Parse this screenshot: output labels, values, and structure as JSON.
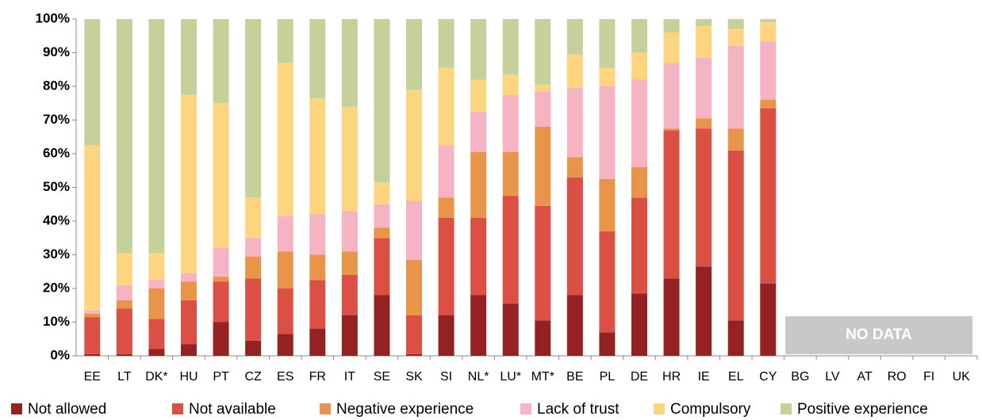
{
  "chart_data": {
    "type": "stacked_bar",
    "categories": [
      "EE",
      "LT",
      "DK*",
      "HU",
      "PT",
      "CZ",
      "ES",
      "FR",
      "IT",
      "SE",
      "SK",
      "SI",
      "NL*",
      "LU*",
      "MT*",
      "BE",
      "PL",
      "DE",
      "HR",
      "IE",
      "EL",
      "CY",
      "BG",
      "LV",
      "AT",
      "RO",
      "FI",
      "UK"
    ],
    "series": [
      {
        "name": "Not allowed",
        "color": "#952222",
        "values": [
          0.5,
          0.5,
          2,
          3.5,
          10,
          4.5,
          6.5,
          8,
          12,
          18,
          0.5,
          12,
          18,
          15.5,
          10.5,
          18,
          7,
          18.5,
          23,
          26.5,
          10.5,
          21.5,
          null,
          null,
          null,
          null,
          null,
          null
        ]
      },
      {
        "name": "Not available",
        "color": "#dc4f45",
        "values": [
          11,
          13.5,
          9,
          13,
          12,
          18.5,
          13.5,
          14.5,
          12,
          17,
          11.5,
          29,
          23,
          32,
          34,
          35,
          30,
          28.5,
          44,
          41,
          50.5,
          52,
          null,
          null,
          null,
          null,
          null,
          null
        ]
      },
      {
        "name": "Negative experience",
        "color": "#e8954a",
        "values": [
          1,
          2.5,
          9,
          5.5,
          1.5,
          6.5,
          11,
          7.5,
          7,
          3,
          16.5,
          6,
          19.5,
          13,
          23.5,
          6,
          15.5,
          9,
          0.5,
          3,
          6.5,
          2.5,
          null,
          null,
          null,
          null,
          null,
          null
        ]
      },
      {
        "name": "Lack of trust",
        "color": "#f5b3c3",
        "values": [
          1,
          4.5,
          2.5,
          2.5,
          8.5,
          5.5,
          10.5,
          12,
          12,
          7,
          17.5,
          15.5,
          12,
          17,
          10.5,
          20.5,
          27.5,
          26,
          19.5,
          18,
          24.5,
          17.5,
          null,
          null,
          null,
          null,
          null,
          null
        ]
      },
      {
        "name": "Compulsory",
        "color": "#fdd57e",
        "values": [
          49,
          9.5,
          8,
          53,
          43,
          12,
          45.5,
          34.5,
          31,
          6.5,
          33,
          23,
          9.5,
          6,
          2,
          10,
          5.5,
          8,
          9,
          9.5,
          5,
          5.5,
          null,
          null,
          null,
          null,
          null,
          null
        ]
      },
      {
        "name": "Positive experience",
        "color": "#c5d09a",
        "values": [
          37.5,
          69.5,
          69.5,
          22.5,
          25,
          53,
          13,
          23.5,
          26,
          48.5,
          21,
          14.5,
          18,
          16.5,
          19.5,
          10.5,
          14.5,
          10,
          4,
          2,
          3,
          1,
          null,
          null,
          null,
          null,
          null,
          null
        ]
      }
    ],
    "ylim": [
      0,
      100
    ],
    "yticks": [
      {
        "value": 0,
        "label": "0%"
      },
      {
        "value": 10,
        "label": "10%"
      },
      {
        "value": 20,
        "label": "20%"
      },
      {
        "value": 30,
        "label": "30%"
      },
      {
        "value": 40,
        "label": "40%"
      },
      {
        "value": 50,
        "label": "50%"
      },
      {
        "value": 60,
        "label": "60%"
      },
      {
        "value": 70,
        "label": "70%"
      },
      {
        "value": 80,
        "label": "80%"
      },
      {
        "value": 90,
        "label": "90%"
      },
      {
        "value": 100,
        "label": "100%"
      }
    ],
    "annotation": "NO DATA",
    "legend": "bottom"
  }
}
